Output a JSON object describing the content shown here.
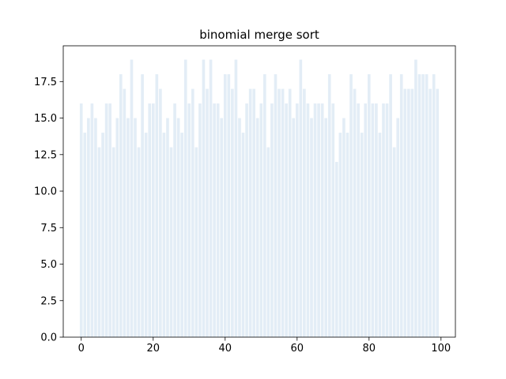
{
  "chart_data": {
    "type": "bar",
    "title": "binomial merge sort",
    "xlabel": "",
    "ylabel": "",
    "xlim": [
      -5,
      104
    ],
    "ylim": [
      0,
      19.95
    ],
    "xticks": [
      0,
      20,
      40,
      60,
      80,
      100
    ],
    "yticks": [
      0.0,
      2.5,
      5.0,
      7.5,
      10.0,
      12.5,
      15.0,
      17.5
    ],
    "xtick_labels": [
      "0",
      "20",
      "40",
      "60",
      "80",
      "100"
    ],
    "ytick_labels": [
      "0.0",
      "2.5",
      "5.0",
      "7.5",
      "10.0",
      "12.5",
      "15.0",
      "17.5"
    ],
    "bar_color": "#e3edf6",
    "grid": false,
    "legend": "none",
    "x": [
      0,
      1,
      2,
      3,
      4,
      5,
      6,
      7,
      8,
      9,
      10,
      11,
      12,
      13,
      14,
      15,
      16,
      17,
      18,
      19,
      20,
      21,
      22,
      23,
      24,
      25,
      26,
      27,
      28,
      29,
      30,
      31,
      32,
      33,
      34,
      35,
      36,
      37,
      38,
      39,
      40,
      41,
      42,
      43,
      44,
      45,
      46,
      47,
      48,
      49,
      50,
      51,
      52,
      53,
      54,
      55,
      56,
      57,
      58,
      59,
      60,
      61,
      62,
      63,
      64,
      65,
      66,
      67,
      68,
      69,
      70,
      71,
      72,
      73,
      74,
      75,
      76,
      77,
      78,
      79,
      80,
      81,
      82,
      83,
      84,
      85,
      86,
      87,
      88,
      89,
      90,
      91,
      92,
      93,
      94,
      95,
      96,
      97,
      98,
      99
    ],
    "values": [
      16,
      14,
      15,
      16,
      15,
      13,
      14,
      16,
      16,
      13,
      15,
      18,
      17,
      15,
      19,
      15,
      13,
      18,
      14,
      16,
      16,
      18,
      17,
      14,
      15,
      13,
      16,
      15,
      14,
      19,
      16,
      17,
      13,
      16,
      19,
      17,
      19,
      16,
      16,
      15,
      18,
      18,
      17,
      19,
      15,
      14,
      16,
      17,
      17,
      15,
      16,
      18,
      13,
      16,
      18,
      17,
      17,
      16,
      17,
      15,
      16,
      19,
      17,
      16,
      15,
      16,
      16,
      16,
      15,
      18,
      16,
      12,
      14,
      15,
      14,
      18,
      17,
      16,
      14,
      16,
      18,
      16,
      16,
      14,
      16,
      16,
      18,
      13,
      15,
      18,
      17,
      17,
      17,
      19,
      18,
      18,
      18,
      17,
      18,
      17
    ]
  }
}
